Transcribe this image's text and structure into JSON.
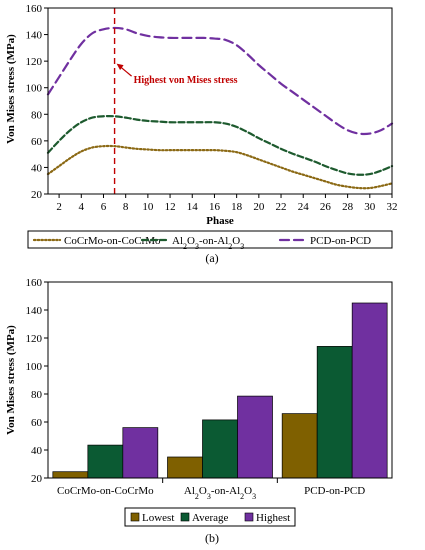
{
  "chart_data": [
    {
      "type": "line",
      "panel_label": "(a)",
      "xlabel": "Phase",
      "ylabel": "Von Mises stress (MPa)",
      "xlim": [
        1,
        32
      ],
      "ylim": [
        20,
        160
      ],
      "x_ticks": [
        2,
        4,
        6,
        8,
        10,
        12,
        14,
        16,
        18,
        20,
        22,
        24,
        26,
        28,
        30,
        32
      ],
      "y_ticks": [
        20,
        40,
        60,
        80,
        100,
        120,
        140,
        160
      ],
      "grid": false,
      "legend_position": "bottom",
      "x": [
        1,
        2,
        3,
        4,
        5,
        6,
        7,
        8,
        9,
        10,
        11,
        12,
        13,
        14,
        15,
        16,
        17,
        18,
        19,
        20,
        21,
        22,
        23,
        24,
        25,
        26,
        27,
        28,
        29,
        30,
        31,
        32
      ],
      "series": [
        {
          "name": "CoCrMo-on-CoCrMo",
          "color": "#8b6914",
          "dash": "dotted",
          "values": [
            35,
            41,
            47,
            52,
            55,
            56,
            56,
            55,
            54,
            53.5,
            53,
            53,
            53,
            53,
            53,
            53,
            52.5,
            51.5,
            49,
            46,
            43,
            40,
            37,
            34.5,
            32,
            29.5,
            27,
            25.5,
            24.5,
            24.5,
            26,
            28
          ]
        },
        {
          "name_parts": [
            "Al",
            "2",
            "O",
            "3",
            "-on-Al",
            "2",
            "O",
            "3"
          ],
          "color": "#1d5a2e",
          "dash": "dashed",
          "values": [
            51,
            60,
            68,
            74,
            77.5,
            78.5,
            78.5,
            77.5,
            76,
            75,
            74.5,
            74,
            74,
            74,
            74,
            74,
            73,
            70.5,
            66.5,
            62,
            58,
            54,
            50.5,
            47.5,
            44.5,
            41,
            38,
            35.5,
            34.5,
            35,
            37.5,
            41
          ]
        },
        {
          "name": "PCD-on-PCD",
          "color": "#7030a0",
          "dash": "longdash",
          "values": [
            95,
            108,
            121,
            133,
            141,
            144,
            145,
            144,
            141,
            139,
            138,
            137.5,
            137.5,
            137.5,
            137.5,
            137,
            136,
            132,
            125,
            117,
            110,
            103,
            97,
            91,
            85,
            79,
            73,
            68,
            65.5,
            65.5,
            68,
            73
          ]
        }
      ],
      "annotation": {
        "text": "Highest von Mises stress",
        "x": 7,
        "y": 117,
        "color": "#c00000",
        "vertical_line_x": 7
      }
    },
    {
      "type": "bar",
      "panel_label": "(b)",
      "xlabel": "",
      "ylabel": "Von Mises stress (MPa)",
      "ylim": [
        20,
        160
      ],
      "y_ticks": [
        20,
        40,
        60,
        80,
        100,
        120,
        140,
        160
      ],
      "grid": false,
      "legend_position": "bottom",
      "categories": [
        {
          "name": "CoCrMo-on-CoCrMo"
        },
        {
          "name_parts": [
            "Al",
            "2",
            "O",
            "3",
            "-on-Al",
            "2",
            "O",
            "3"
          ]
        },
        {
          "name": "PCD-on-PCD"
        }
      ],
      "series": [
        {
          "name": "Lowest",
          "color": "#7f6000",
          "values": [
            24.5,
            35,
            66
          ]
        },
        {
          "name": "Average",
          "color": "#0b5a33",
          "values": [
            43.5,
            61.5,
            114
          ]
        },
        {
          "name": "Highest",
          "color": "#7030a0",
          "values": [
            56,
            78.5,
            145
          ]
        }
      ]
    }
  ]
}
